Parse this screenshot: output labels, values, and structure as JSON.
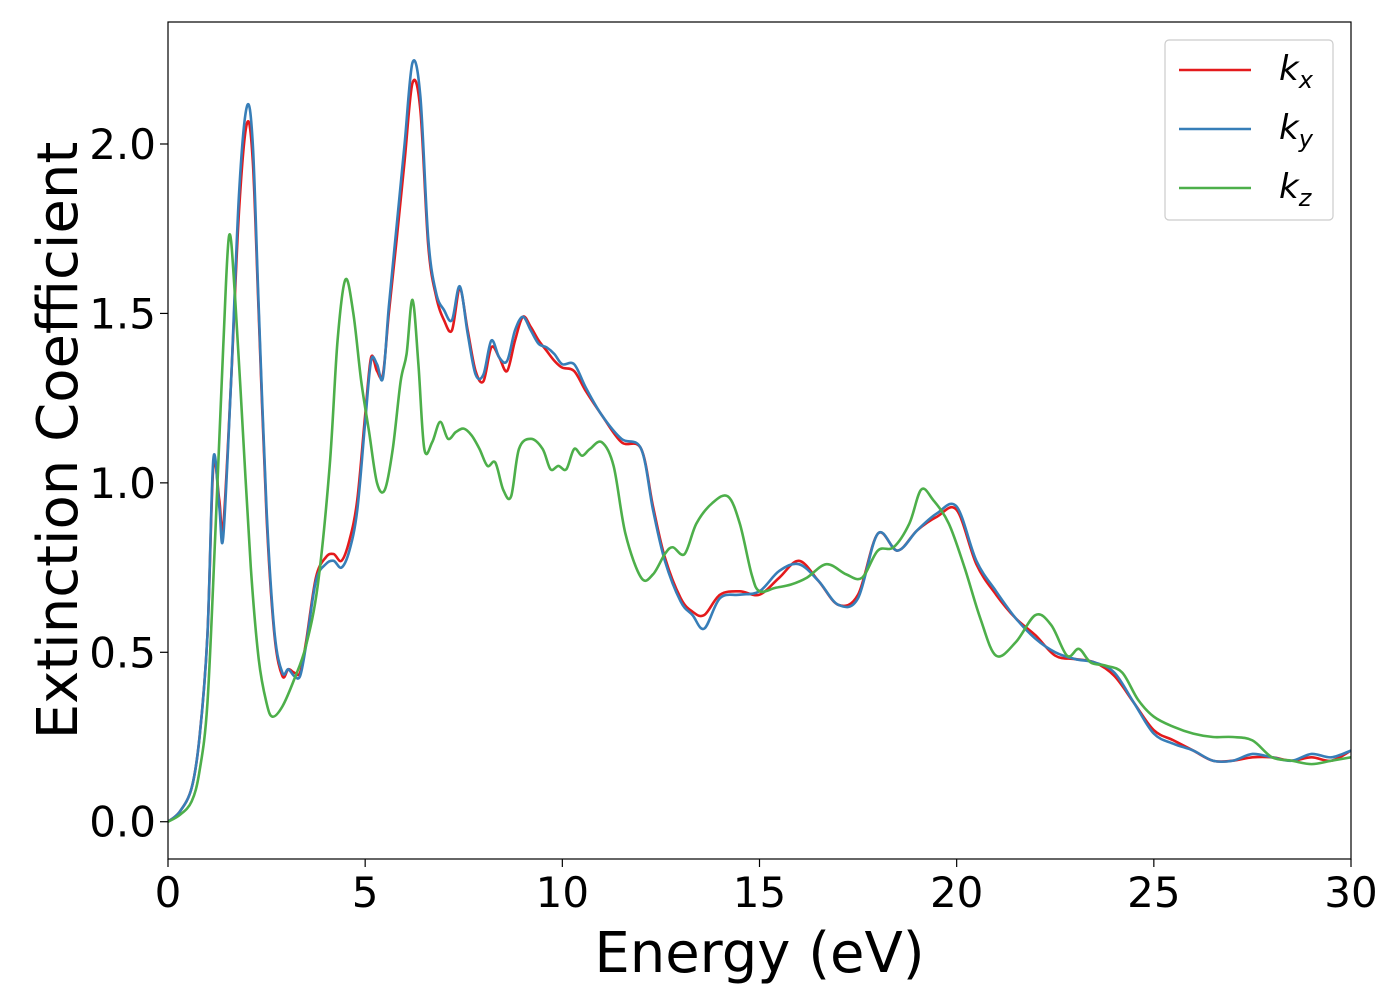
{
  "chart_data": {
    "type": "line",
    "title": "",
    "xlabel": "Energy (eV)",
    "ylabel": "Extinction Coefficient",
    "xlim": [
      0,
      30
    ],
    "ylim": [
      -0.11,
      2.36
    ],
    "xticks": [
      "0",
      "5",
      "10",
      "15",
      "20",
      "25",
      "30"
    ],
    "yticks": [
      "0.0",
      "0.5",
      "1.0",
      "1.5",
      "2.0"
    ],
    "grid": false,
    "legend_position": "top-right",
    "series": [
      {
        "name": "k_x",
        "label_base": "k",
        "label_sub": "x",
        "color": "#e41a1c",
        "x": [
          0,
          0.3,
          0.6,
          0.8,
          1.0,
          1.15,
          1.3,
          1.4,
          1.6,
          1.8,
          2.0,
          2.15,
          2.3,
          2.5,
          2.7,
          2.9,
          3.05,
          3.2,
          3.35,
          3.5,
          3.75,
          4.0,
          4.2,
          4.4,
          4.6,
          4.8,
          5.0,
          5.15,
          5.3,
          5.45,
          5.6,
          5.8,
          6.0,
          6.2,
          6.4,
          6.6,
          6.8,
          7.0,
          7.2,
          7.4,
          7.6,
          7.8,
          8.0,
          8.2,
          8.4,
          8.6,
          8.8,
          9.0,
          9.2,
          9.4,
          9.6,
          9.8,
          10.0,
          10.3,
          10.6,
          11.0,
          11.5,
          12.0,
          12.3,
          12.6,
          13.0,
          13.3,
          13.6,
          14.0,
          14.5,
          15.0,
          15.5,
          16.0,
          16.5,
          17.0,
          17.5,
          18.0,
          18.5,
          19.0,
          19.5,
          20.0,
          20.5,
          21.0,
          21.5,
          22.0,
          22.5,
          23.0,
          23.5,
          24.0,
          24.5,
          25.0,
          25.5,
          26.0,
          26.5,
          27.0,
          27.5,
          28.0,
          28.5,
          29.0,
          29.5,
          30.0
        ],
        "y": [
          0.0,
          0.03,
          0.1,
          0.25,
          0.55,
          1.05,
          0.95,
          0.87,
          1.3,
          1.8,
          2.06,
          1.95,
          1.5,
          0.9,
          0.55,
          0.43,
          0.45,
          0.44,
          0.44,
          0.53,
          0.72,
          0.78,
          0.79,
          0.77,
          0.83,
          0.95,
          1.2,
          1.37,
          1.33,
          1.32,
          1.5,
          1.72,
          1.95,
          2.18,
          2.1,
          1.7,
          1.55,
          1.48,
          1.45,
          1.57,
          1.45,
          1.33,
          1.3,
          1.4,
          1.37,
          1.33,
          1.42,
          1.49,
          1.46,
          1.42,
          1.39,
          1.36,
          1.34,
          1.33,
          1.27,
          1.2,
          1.12,
          1.1,
          0.93,
          0.78,
          0.66,
          0.62,
          0.61,
          0.67,
          0.68,
          0.67,
          0.72,
          0.77,
          0.71,
          0.64,
          0.67,
          0.85,
          0.8,
          0.86,
          0.9,
          0.92,
          0.76,
          0.67,
          0.6,
          0.55,
          0.49,
          0.48,
          0.47,
          0.43,
          0.35,
          0.27,
          0.24,
          0.21,
          0.18,
          0.18,
          0.19,
          0.19,
          0.18,
          0.19,
          0.18,
          0.21
        ]
      },
      {
        "name": "k_y",
        "label_base": "k",
        "label_sub": "y",
        "color": "#377eb8",
        "x": [
          0,
          0.3,
          0.6,
          0.8,
          1.0,
          1.15,
          1.3,
          1.4,
          1.6,
          1.8,
          2.0,
          2.15,
          2.3,
          2.5,
          2.7,
          2.9,
          3.05,
          3.2,
          3.35,
          3.5,
          3.75,
          4.0,
          4.2,
          4.4,
          4.6,
          4.8,
          5.0,
          5.15,
          5.3,
          5.45,
          5.6,
          5.8,
          6.0,
          6.2,
          6.4,
          6.6,
          6.8,
          7.0,
          7.2,
          7.4,
          7.6,
          7.8,
          8.0,
          8.2,
          8.4,
          8.6,
          8.8,
          9.0,
          9.2,
          9.4,
          9.6,
          9.8,
          10.0,
          10.3,
          10.6,
          11.0,
          11.5,
          12.0,
          12.3,
          12.6,
          13.0,
          13.3,
          13.6,
          14.0,
          14.5,
          15.0,
          15.5,
          16.0,
          16.5,
          17.0,
          17.5,
          18.0,
          18.5,
          19.0,
          19.5,
          20.0,
          20.5,
          21.0,
          21.5,
          22.0,
          22.5,
          23.0,
          23.5,
          24.0,
          24.5,
          25.0,
          25.5,
          26.0,
          26.5,
          27.0,
          27.5,
          28.0,
          28.5,
          29.0,
          29.5,
          30.0
        ],
        "y": [
          0.0,
          0.03,
          0.1,
          0.25,
          0.55,
          1.07,
          0.93,
          0.84,
          1.3,
          1.85,
          2.11,
          2.0,
          1.52,
          0.92,
          0.56,
          0.44,
          0.45,
          0.43,
          0.43,
          0.52,
          0.71,
          0.76,
          0.77,
          0.75,
          0.8,
          0.92,
          1.18,
          1.36,
          1.35,
          1.31,
          1.52,
          1.76,
          2.0,
          2.24,
          2.14,
          1.72,
          1.56,
          1.51,
          1.48,
          1.58,
          1.44,
          1.32,
          1.32,
          1.42,
          1.37,
          1.36,
          1.45,
          1.49,
          1.45,
          1.41,
          1.4,
          1.38,
          1.35,
          1.35,
          1.28,
          1.2,
          1.13,
          1.1,
          0.92,
          0.77,
          0.65,
          0.61,
          0.57,
          0.66,
          0.67,
          0.68,
          0.74,
          0.76,
          0.71,
          0.64,
          0.66,
          0.85,
          0.8,
          0.86,
          0.91,
          0.93,
          0.77,
          0.68,
          0.6,
          0.54,
          0.5,
          0.48,
          0.47,
          0.44,
          0.35,
          0.26,
          0.23,
          0.21,
          0.18,
          0.18,
          0.2,
          0.19,
          0.18,
          0.2,
          0.19,
          0.21
        ]
      },
      {
        "name": "k_z",
        "label_base": "k",
        "label_sub": "z",
        "color": "#4daf4a",
        "x": [
          0,
          0.3,
          0.6,
          0.8,
          1.0,
          1.2,
          1.4,
          1.55,
          1.7,
          1.9,
          2.1,
          2.3,
          2.5,
          2.65,
          2.9,
          3.2,
          3.5,
          3.8,
          4.1,
          4.3,
          4.5,
          4.7,
          4.9,
          5.1,
          5.3,
          5.5,
          5.7,
          5.9,
          6.05,
          6.2,
          6.35,
          6.5,
          6.7,
          6.9,
          7.1,
          7.3,
          7.5,
          7.7,
          7.9,
          8.1,
          8.3,
          8.5,
          8.7,
          8.9,
          9.2,
          9.5,
          9.7,
          9.9,
          10.1,
          10.3,
          10.5,
          10.7,
          11.0,
          11.3,
          11.6,
          12.0,
          12.3,
          12.6,
          12.8,
          13.1,
          13.4,
          13.8,
          14.2,
          14.5,
          14.8,
          15.0,
          15.4,
          15.8,
          16.2,
          16.7,
          17.2,
          17.6,
          18.0,
          18.4,
          18.8,
          19.1,
          19.4,
          19.8,
          20.2,
          20.6,
          21.0,
          21.5,
          22.0,
          22.4,
          22.8,
          23.1,
          23.4,
          23.8,
          24.2,
          24.6,
          25.0,
          25.5,
          26.0,
          26.5,
          27.0,
          27.5,
          28.0,
          28.5,
          29.0,
          29.5,
          30.0
        ],
        "y": [
          0.0,
          0.02,
          0.06,
          0.15,
          0.35,
          0.85,
          1.4,
          1.73,
          1.55,
          1.15,
          0.75,
          0.48,
          0.35,
          0.31,
          0.34,
          0.42,
          0.52,
          0.7,
          1.05,
          1.42,
          1.6,
          1.5,
          1.3,
          1.15,
          1.0,
          0.98,
          1.1,
          1.3,
          1.38,
          1.54,
          1.35,
          1.1,
          1.12,
          1.18,
          1.13,
          1.15,
          1.16,
          1.14,
          1.1,
          1.05,
          1.06,
          0.98,
          0.96,
          1.1,
          1.13,
          1.1,
          1.04,
          1.05,
          1.04,
          1.1,
          1.08,
          1.1,
          1.12,
          1.05,
          0.85,
          0.72,
          0.73,
          0.79,
          0.81,
          0.79,
          0.88,
          0.94,
          0.96,
          0.88,
          0.73,
          0.68,
          0.69,
          0.7,
          0.72,
          0.76,
          0.73,
          0.72,
          0.8,
          0.81,
          0.88,
          0.98,
          0.95,
          0.88,
          0.75,
          0.6,
          0.49,
          0.53,
          0.61,
          0.58,
          0.49,
          0.51,
          0.47,
          0.46,
          0.44,
          0.36,
          0.31,
          0.28,
          0.26,
          0.25,
          0.25,
          0.24,
          0.19,
          0.18,
          0.17,
          0.18,
          0.19
        ]
      }
    ]
  }
}
